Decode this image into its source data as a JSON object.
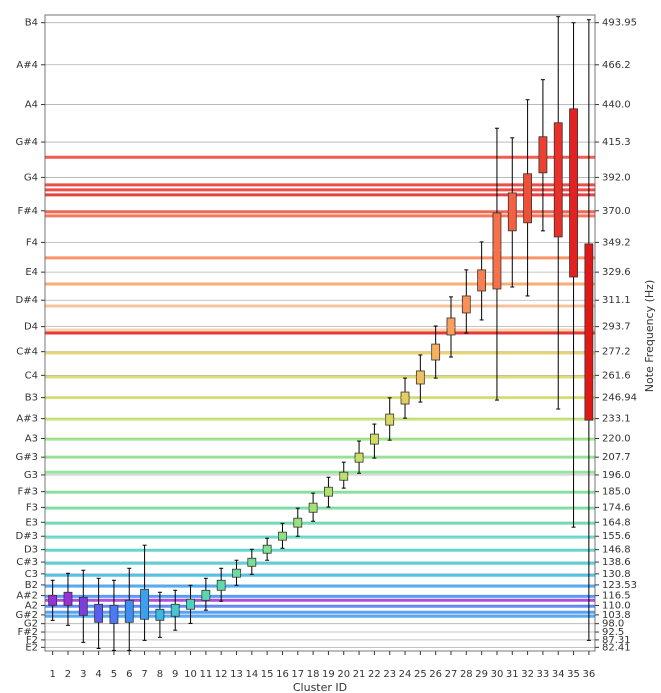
{
  "chart_data": {
    "type": "box",
    "xlabel": "Cluster ID",
    "y2label": "Note Frequency (Hz)",
    "x": [
      1,
      2,
      3,
      4,
      5,
      6,
      7,
      8,
      9,
      10,
      11,
      12,
      13,
      14,
      15,
      16,
      17,
      18,
      19,
      20,
      21,
      22,
      23,
      24,
      25,
      26,
      27,
      28,
      29,
      30,
      31,
      32,
      33,
      34,
      35,
      36
    ],
    "xlim": [
      0.5,
      36.4
    ],
    "xticks": [
      1,
      2,
      3,
      4,
      5,
      6,
      7,
      8,
      9,
      10,
      11,
      12,
      13,
      14,
      15,
      16,
      17,
      18,
      19,
      20,
      21,
      22,
      23,
      24,
      25,
      26,
      27,
      28,
      29,
      30,
      31,
      32,
      33,
      34,
      35,
      36
    ],
    "ylim": [
      80,
      499
    ],
    "y2lim": [
      80,
      499
    ],
    "grid": true,
    "yticks": [
      {
        "value": 493.95,
        "label": "B4"
      },
      {
        "value": 466.2,
        "label": "A#4"
      },
      {
        "value": 440,
        "label": "A4"
      },
      {
        "value": 415.3,
        "label": "G#4"
      },
      {
        "value": 392,
        "label": "G4"
      },
      {
        "value": 370,
        "label": "F#4"
      },
      {
        "value": 349.2,
        "label": "F4"
      },
      {
        "value": 329.6,
        "label": "E4"
      },
      {
        "value": 311.1,
        "label": "D#4"
      },
      {
        "value": 293.7,
        "label": "D4"
      },
      {
        "value": 277.2,
        "label": "C#4"
      },
      {
        "value": 261.6,
        "label": "C4"
      },
      {
        "value": 246.94,
        "label": "B3"
      },
      {
        "value": 233.1,
        "label": "A#3"
      },
      {
        "value": 220,
        "label": "A3"
      },
      {
        "value": 207.7,
        "label": "G#3"
      },
      {
        "value": 196,
        "label": "G3"
      },
      {
        "value": 185,
        "label": "F#3"
      },
      {
        "value": 174.6,
        "label": "F3"
      },
      {
        "value": 164.8,
        "label": "E3"
      },
      {
        "value": 155.6,
        "label": "D#3"
      },
      {
        "value": 146.8,
        "label": "D3"
      },
      {
        "value": 138.6,
        "label": "C#3"
      },
      {
        "value": 130.8,
        "label": "C3"
      },
      {
        "value": 123.53,
        "label": "B2"
      },
      {
        "value": 116.5,
        "label": "A#2"
      },
      {
        "value": 110,
        "label": "A2"
      },
      {
        "value": 103.8,
        "label": "G#2"
      },
      {
        "value": 98,
        "label": "G2"
      },
      {
        "value": 92.5,
        "label": "F#2"
      },
      {
        "value": 87.31,
        "label": "F2"
      },
      {
        "value": 82.41,
        "label": "E2"
      }
    ],
    "y2ticks": [
      493.95,
      466.2,
      {
        "value": 440,
        "label": "440.0"
      },
      415.3,
      {
        "value": 392,
        "label": "392.0"
      },
      {
        "value": 370,
        "label": "370.0"
      },
      349.2,
      329.6,
      311.1,
      293.7,
      277.2,
      261.6,
      246.94,
      233.1,
      {
        "value": 220,
        "label": "220.0"
      },
      207.7,
      {
        "value": 196,
        "label": "196.0"
      },
      {
        "value": 185,
        "label": "185.0"
      },
      174.6,
      164.8,
      155.6,
      146.8,
      138.6,
      130.8,
      123.53,
      116.5,
      {
        "value": 110,
        "label": "110.0"
      },
      103.8,
      {
        "value": 98,
        "label": "98.0"
      },
      92.5,
      87.31,
      82.41
    ],
    "values": [
      [
        100.2,
        110.1,
        113.4,
        116.7,
        126.6
      ],
      [
        96.9,
        110.1,
        114.7,
        118.7,
        131.2
      ],
      [
        85.7,
        103.5,
        110.1,
        115.4,
        133.2
      ],
      [
        81.7,
        98.9,
        105.5,
        110.8,
        127.9
      ],
      [
        80.4,
        98.2,
        104.2,
        110.1,
        126.6
      ],
      [
        80.4,
        98.9,
        105.5,
        113.4,
        134.5
      ],
      [
        87.0,
        100.9,
        110.1,
        120.7,
        149.7
      ],
      [
        89.0,
        100.2,
        104.2,
        107.5,
        118.7
      ],
      [
        93.7,
        102.9,
        107.5,
        110.8,
        120.0
      ],
      [
        98.2,
        107.5,
        110.8,
        114.1,
        123.3
      ],
      [
        106.9,
        113.4,
        116.7,
        120.0,
        127.9
      ],
      [
        112.8,
        120.0,
        123.3,
        126.6,
        134.5
      ],
      [
        123.3,
        128.6,
        131.2,
        133.9,
        139.8
      ],
      [
        130.5,
        135.8,
        138.5,
        141.1,
        147.0
      ],
      [
        139.8,
        144.4,
        147.0,
        149.7,
        154.3
      ],
      [
        147.7,
        153.0,
        155.6,
        158.3,
        164.1
      ],
      [
        155.6,
        161.6,
        164.9,
        167.5,
        174.1
      ],
      [
        165.5,
        171.4,
        174.1,
        177.4,
        184.0
      ],
      [
        174.8,
        182.0,
        184.6,
        187.9,
        194.5
      ],
      [
        187.3,
        192.5,
        195.2,
        197.8,
        204.4
      ],
      [
        197.1,
        204.4,
        207.1,
        210.4,
        218.3
      ],
      [
        207.1,
        216.3,
        219.6,
        222.9,
        229.5
      ],
      [
        218.9,
        228.8,
        232.8,
        236.1,
        246.8
      ],
      [
        233.4,
        242.7,
        246.8,
        250.6,
        259.8
      ],
      [
        244.0,
        255.9,
        260.5,
        264.5,
        275.0
      ],
      [
        259.8,
        271.7,
        277.0,
        282.2,
        294.1
      ],
      [
        273.7,
        288.2,
        293.4,
        299.4,
        313.3
      ],
      [
        289.5,
        302.7,
        308.6,
        313.9,
        331.1
      ],
      [
        298.1,
        317.2,
        324.5,
        331.1,
        349.5
      ],
      [
        245.3,
        318.5,
        344.2,
        368.6,
        424.4
      ],
      [
        319.8,
        356.8,
        369.3,
        381.8,
        418.1
      ],
      [
        313.9,
        362.1,
        379.2,
        394.4,
        443.2
      ],
      [
        356.8,
        395.0,
        405.6,
        418.8,
        456.4
      ],
      [
        239.4,
        352.8,
        390.4,
        428.0,
        497.9
      ],
      [
        161.6,
        326.4,
        381.8,
        437.2,
        493.9
      ],
      [
        87.0,
        232.1,
        291.5,
        348.2,
        495.9
      ]
    ],
    "colors": [
      "#9b30d9",
      "#9b30d9",
      "#7b3fe0",
      "#5a5ff0",
      "#4a7af5",
      "#3f8ef5",
      "#3aa0f0",
      "#3ab8e0",
      "#45c8d0",
      "#50d0c0",
      "#5ad6b0",
      "#60d8a8",
      "#6edca0",
      "#7ade98",
      "#82e090",
      "#8ce088",
      "#98e080",
      "#a4e078",
      "#b0e070",
      "#bde06c",
      "#c8df68",
      "#d2dc66",
      "#dcd664",
      "#e6cc62",
      "#f0c060",
      "#f5b060",
      "#f8a05c",
      "#f89058",
      "#f88050",
      "#f87048",
      "#f46040",
      "#f05038",
      "#ec4030",
      "#e83028",
      "#e42020",
      "#e01818"
    ],
    "reference_lines": [
      {
        "value": 405.3,
        "color": "#f04030"
      },
      {
        "value": 387.1,
        "color": "#e83028"
      },
      {
        "value": 383.8,
        "color": "#e83028"
      },
      {
        "value": 380.5,
        "color": "#e42020"
      },
      {
        "value": 369.3,
        "color": "#f05038"
      },
      {
        "value": 366.7,
        "color": "#f46040"
      },
      {
        "value": 339.0,
        "color": "#f88050"
      },
      {
        "value": 321.8,
        "color": "#f8a05c"
      },
      {
        "value": 307.3,
        "color": "#f5b88a"
      },
      {
        "value": 291.5,
        "color": "#f8d0a8"
      },
      {
        "value": 289.5,
        "color": "#e01818"
      },
      {
        "value": 276.3,
        "color": "#e6cc62"
      },
      {
        "value": 260.5,
        "color": "#dcd664"
      },
      {
        "value": 246.9,
        "color": "#d2dc66"
      },
      {
        "value": 232.8,
        "color": "#bde06c"
      },
      {
        "value": 219.6,
        "color": "#98e080"
      },
      {
        "value": 207.7,
        "color": "#8ce088"
      },
      {
        "value": 197.8,
        "color": "#82e090"
      },
      {
        "value": 184.6,
        "color": "#7ade98"
      },
      {
        "value": 174.1,
        "color": "#6edca0"
      },
      {
        "value": 164.2,
        "color": "#60d8a8"
      },
      {
        "value": 155.0,
        "color": "#5ad6c8"
      },
      {
        "value": 146.4,
        "color": "#50d0c8"
      },
      {
        "value": 137.8,
        "color": "#45c8d0"
      },
      {
        "value": 129.9,
        "color": "#3ab8e0"
      },
      {
        "value": 122.7,
        "color": "#3aa0f0"
      },
      {
        "value": 116.0,
        "color": "#3f8ef5"
      },
      {
        "value": 113.4,
        "color": "#9b30d9"
      },
      {
        "value": 109.5,
        "color": "#4a7af5"
      },
      {
        "value": 105.5,
        "color": "#3f8ef5"
      },
      {
        "value": 102.9,
        "color": "#3aa0f0"
      }
    ]
  }
}
